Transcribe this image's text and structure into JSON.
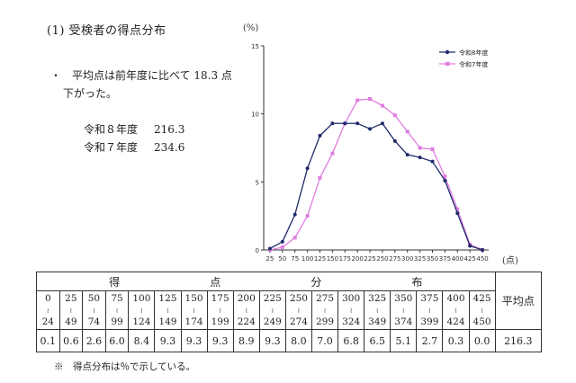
{
  "heading": "(1) 受検者の得点分布",
  "summary": {
    "bullet": "・",
    "line1": "平均点は前年度に比べて 18.3 点",
    "line2": "下がった。"
  },
  "averages": [
    {
      "label": "令和８年度",
      "value": "216.3"
    },
    {
      "label": "令和７年度",
      "value": "234.6"
    }
  ],
  "chart_data": {
    "type": "line",
    "ylabel": "(%)",
    "xlabel": "(点)",
    "ylim": [
      0,
      15
    ],
    "yticks": [
      "0",
      "5",
      "10",
      "15"
    ],
    "x": [
      25,
      50,
      75,
      100,
      125,
      150,
      175,
      200,
      225,
      250,
      275,
      300,
      325,
      350,
      375,
      400,
      425,
      450
    ],
    "xtick_labels": [
      "25",
      "50",
      "75",
      "100",
      "125",
      "150",
      "175",
      "200",
      "225",
      "250",
      "275",
      "300",
      "325",
      "350",
      "375",
      "400",
      "425",
      "450"
    ],
    "series": [
      {
        "name": "令和8年度",
        "color": "#1f2a6b",
        "marker": "circle",
        "values": [
          0.1,
          0.6,
          2.6,
          6.0,
          8.4,
          9.3,
          9.3,
          9.3,
          8.9,
          9.3,
          8.0,
          7.0,
          6.8,
          6.5,
          5.1,
          2.7,
          0.3,
          0.0
        ]
      },
      {
        "name": "令和7年度",
        "color": "#e07de0",
        "marker": "square",
        "values": [
          0.0,
          0.2,
          0.9,
          2.5,
          5.3,
          7.1,
          9.3,
          11.0,
          11.1,
          10.6,
          9.9,
          8.7,
          7.5,
          7.4,
          5.4,
          3.0,
          0.4,
          0.0
        ]
      }
    ],
    "legend_position": "top-right"
  },
  "table": {
    "header_chars": [
      "得",
      "点",
      "分",
      "布"
    ],
    "avg_header": "平均点",
    "ranges": [
      {
        "from": "0",
        "to": "24"
      },
      {
        "from": "25",
        "to": "49"
      },
      {
        "from": "50",
        "to": "74"
      },
      {
        "from": "75",
        "to": "99"
      },
      {
        "from": "100",
        "to": "124"
      },
      {
        "from": "125",
        "to": "149"
      },
      {
        "from": "150",
        "to": "174"
      },
      {
        "from": "175",
        "to": "199"
      },
      {
        "from": "200",
        "to": "224"
      },
      {
        "from": "225",
        "to": "249"
      },
      {
        "from": "250",
        "to": "274"
      },
      {
        "from": "275",
        "to": "299"
      },
      {
        "from": "300",
        "to": "324"
      },
      {
        "from": "325",
        "to": "349"
      },
      {
        "from": "350",
        "to": "374"
      },
      {
        "from": "375",
        "to": "399"
      },
      {
        "from": "400",
        "to": "424"
      },
      {
        "from": "425",
        "to": "450"
      }
    ],
    "tilde": "≀",
    "values": [
      "0.1",
      "0.6",
      "2.6",
      "6.0",
      "8.4",
      "9.3",
      "9.3",
      "9.3",
      "8.9",
      "9.3",
      "8.0",
      "7.0",
      "6.8",
      "6.5",
      "5.1",
      "2.7",
      "0.3",
      "0.0"
    ],
    "average": "216.3"
  },
  "footnote": "※　得点分布は％で示している。"
}
